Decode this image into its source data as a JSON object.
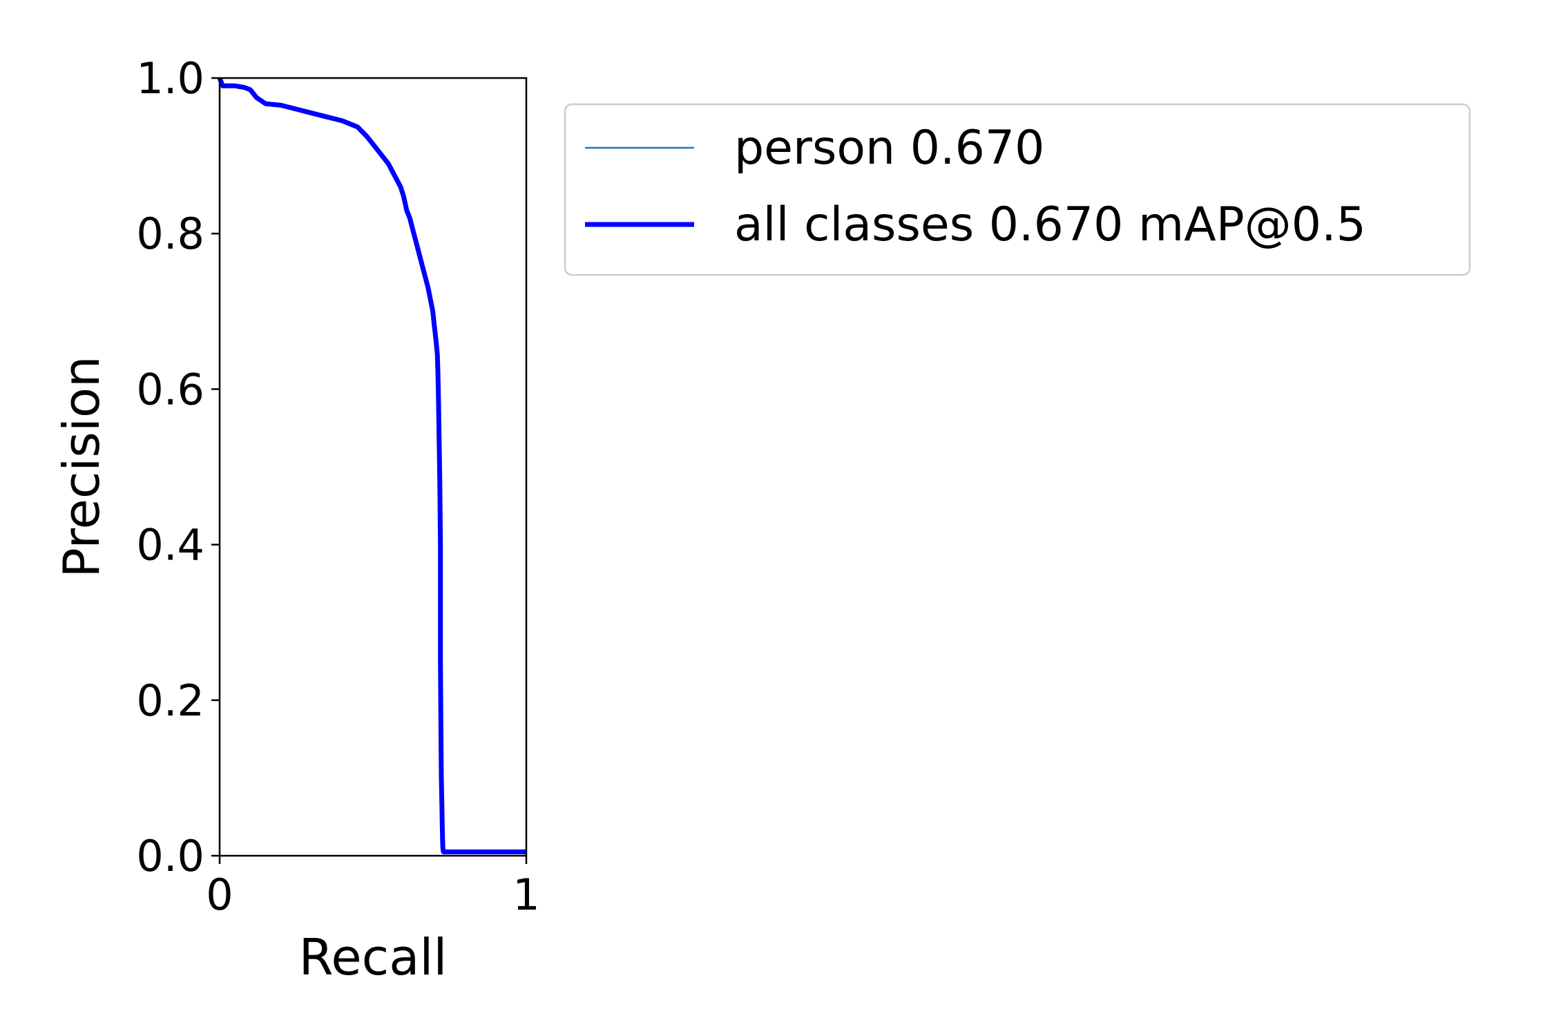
{
  "chart_data": {
    "type": "line",
    "title": "",
    "xlabel": "Recall",
    "ylabel": "Precision",
    "xlim": [
      0,
      1
    ],
    "ylim": [
      0,
      1
    ],
    "x_ticks": [
      0,
      1
    ],
    "x_tick_labels": [
      "0",
      "1"
    ],
    "y_ticks": [
      0,
      0.2,
      0.4,
      0.6,
      0.8,
      1.0
    ],
    "y_tick_labels": [
      "0.0",
      "0.2",
      "0.4",
      "0.6",
      "0.8",
      "1.0"
    ],
    "grid": false,
    "legend_position": "outside upper right",
    "series": [
      {
        "name": "person 0.670",
        "color": "#1f77b4",
        "x": [
          0,
          0.01,
          0.02,
          0.05,
          0.08,
          0.1,
          0.12,
          0.15,
          0.2,
          0.25,
          0.3,
          0.35,
          0.4,
          0.45,
          0.48,
          0.5,
          0.52,
          0.55,
          0.57,
          0.59,
          0.6,
          0.61,
          0.62,
          0.63,
          0.64,
          0.65,
          0.66,
          0.67,
          0.68,
          0.69,
          0.695,
          0.7,
          0.705,
          0.71,
          0.712,
          0.714,
          0.716,
          0.718,
          0.72,
          0.72,
          0.72,
          0.721,
          0.722,
          0.723,
          0.725,
          0.726,
          0.727,
          0.728,
          0.73,
          0.73,
          0.75,
          0.8,
          0.9,
          1.0
        ],
        "y": [
          1.0,
          0.99,
          0.99,
          0.99,
          0.988,
          0.985,
          0.975,
          0.967,
          0.965,
          0.96,
          0.955,
          0.95,
          0.945,
          0.937,
          0.925,
          0.915,
          0.905,
          0.89,
          0.875,
          0.86,
          0.848,
          0.83,
          0.82,
          0.805,
          0.79,
          0.775,
          0.76,
          0.745,
          0.73,
          0.71,
          0.7,
          0.682,
          0.665,
          0.645,
          0.62,
          0.58,
          0.53,
          0.48,
          0.4,
          0.35,
          0.25,
          0.2,
          0.14,
          0.1,
          0.06,
          0.04,
          0.02,
          0.01,
          0.005,
          0.005,
          0.005,
          0.005,
          0.005,
          0.005
        ]
      },
      {
        "name": "all classes 0.670 mAP@0.5",
        "color": "#0000ff",
        "x": [
          0,
          0.01,
          0.02,
          0.05,
          0.08,
          0.1,
          0.12,
          0.15,
          0.2,
          0.25,
          0.3,
          0.35,
          0.4,
          0.45,
          0.48,
          0.5,
          0.52,
          0.55,
          0.57,
          0.59,
          0.6,
          0.61,
          0.62,
          0.63,
          0.64,
          0.65,
          0.66,
          0.67,
          0.68,
          0.69,
          0.695,
          0.7,
          0.705,
          0.71,
          0.712,
          0.714,
          0.716,
          0.718,
          0.72,
          0.72,
          0.72,
          0.721,
          0.722,
          0.723,
          0.725,
          0.726,
          0.727,
          0.728,
          0.73,
          0.73,
          0.75,
          0.8,
          0.9,
          1.0
        ],
        "y": [
          1.0,
          0.99,
          0.99,
          0.99,
          0.988,
          0.985,
          0.975,
          0.967,
          0.965,
          0.96,
          0.955,
          0.95,
          0.945,
          0.937,
          0.925,
          0.915,
          0.905,
          0.89,
          0.875,
          0.86,
          0.848,
          0.83,
          0.82,
          0.805,
          0.79,
          0.775,
          0.76,
          0.745,
          0.73,
          0.71,
          0.7,
          0.682,
          0.665,
          0.645,
          0.62,
          0.58,
          0.53,
          0.48,
          0.4,
          0.35,
          0.25,
          0.2,
          0.14,
          0.1,
          0.06,
          0.04,
          0.02,
          0.01,
          0.005,
          0.005,
          0.005,
          0.005,
          0.005,
          0.005
        ]
      }
    ]
  }
}
